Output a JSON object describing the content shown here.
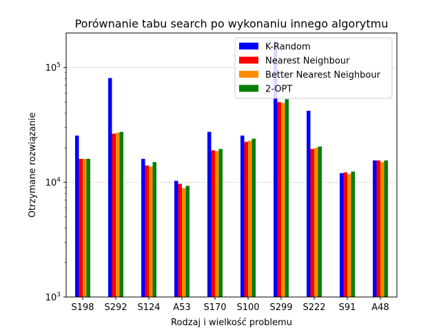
{
  "chart_data": {
    "type": "bar",
    "title": "Porównanie tabu search po wykonaniu innego algorytmu",
    "xlabel": "Rodzaj i wielkość problemu",
    "ylabel": "Otrzymane rozwiązanie",
    "yscale": "log",
    "ylim": [
      1000,
      200000
    ],
    "yticks": [
      {
        "value": 1000,
        "base": "10",
        "exp": "3"
      },
      {
        "value": 10000,
        "base": "10",
        "exp": "4"
      },
      {
        "value": 100000,
        "base": "10",
        "exp": "5"
      }
    ],
    "grid": "horizontal-dashed",
    "legend_position": "top-right",
    "categories": [
      "S198",
      "S292",
      "S124",
      "A53",
      "S170",
      "S100",
      "S299",
      "S222",
      "S91",
      "A48"
    ],
    "series": [
      {
        "name": "K-Random",
        "color": "#0000ff",
        "values": [
          25500,
          81000,
          16000,
          10300,
          27500,
          25500,
          170000,
          42000,
          12000,
          15500
        ]
      },
      {
        "name": "Nearest Neighbour",
        "color": "#ff0000",
        "values": [
          16000,
          26500,
          14000,
          9700,
          19000,
          22500,
          50000,
          19500,
          12200,
          15500
        ]
      },
      {
        "name": "Better Nearest Neighbour",
        "color": "#ff8c00",
        "values": [
          16000,
          27000,
          13700,
          8900,
          18700,
          23000,
          49000,
          20000,
          11800,
          15000
        ]
      },
      {
        "name": "2-OPT",
        "color": "#008000",
        "values": [
          16000,
          27500,
          15000,
          9300,
          19500,
          24000,
          53000,
          20500,
          12400,
          15500
        ]
      }
    ]
  }
}
